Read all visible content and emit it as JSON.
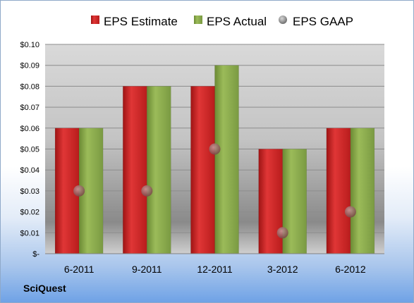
{
  "brand": "SciQuest",
  "colors": {
    "estimate": "#d42a2a",
    "actual": "#8cab4e",
    "gaap": "#a8a8a8"
  },
  "chart_data": {
    "type": "bar",
    "title": "",
    "xlabel": "",
    "ylabel": "",
    "categories": [
      "6-2011",
      "9-2011",
      "12-2011",
      "3-2012",
      "6-2012"
    ],
    "series": [
      {
        "name": "EPS Estimate",
        "kind": "bar",
        "values": [
          0.06,
          0.08,
          0.08,
          0.05,
          0.06
        ]
      },
      {
        "name": "EPS Actual",
        "kind": "bar",
        "values": [
          0.06,
          0.08,
          0.09,
          0.05,
          0.06
        ]
      },
      {
        "name": "EPS GAAP",
        "kind": "marker",
        "values": [
          0.03,
          0.03,
          0.05,
          0.01,
          0.02
        ]
      }
    ],
    "ylim": [
      0,
      0.1
    ],
    "yticks": [
      0,
      0.01,
      0.02,
      0.03,
      0.04,
      0.05,
      0.06,
      0.07,
      0.08,
      0.09,
      0.1
    ],
    "ytick_labels": [
      "$-",
      "$0.01",
      "$0.02",
      "$0.03",
      "$0.04",
      "$0.05",
      "$0.06",
      "$0.07",
      "$0.08",
      "$0.09",
      "$0.10"
    ],
    "grid": true,
    "legend": "top"
  }
}
